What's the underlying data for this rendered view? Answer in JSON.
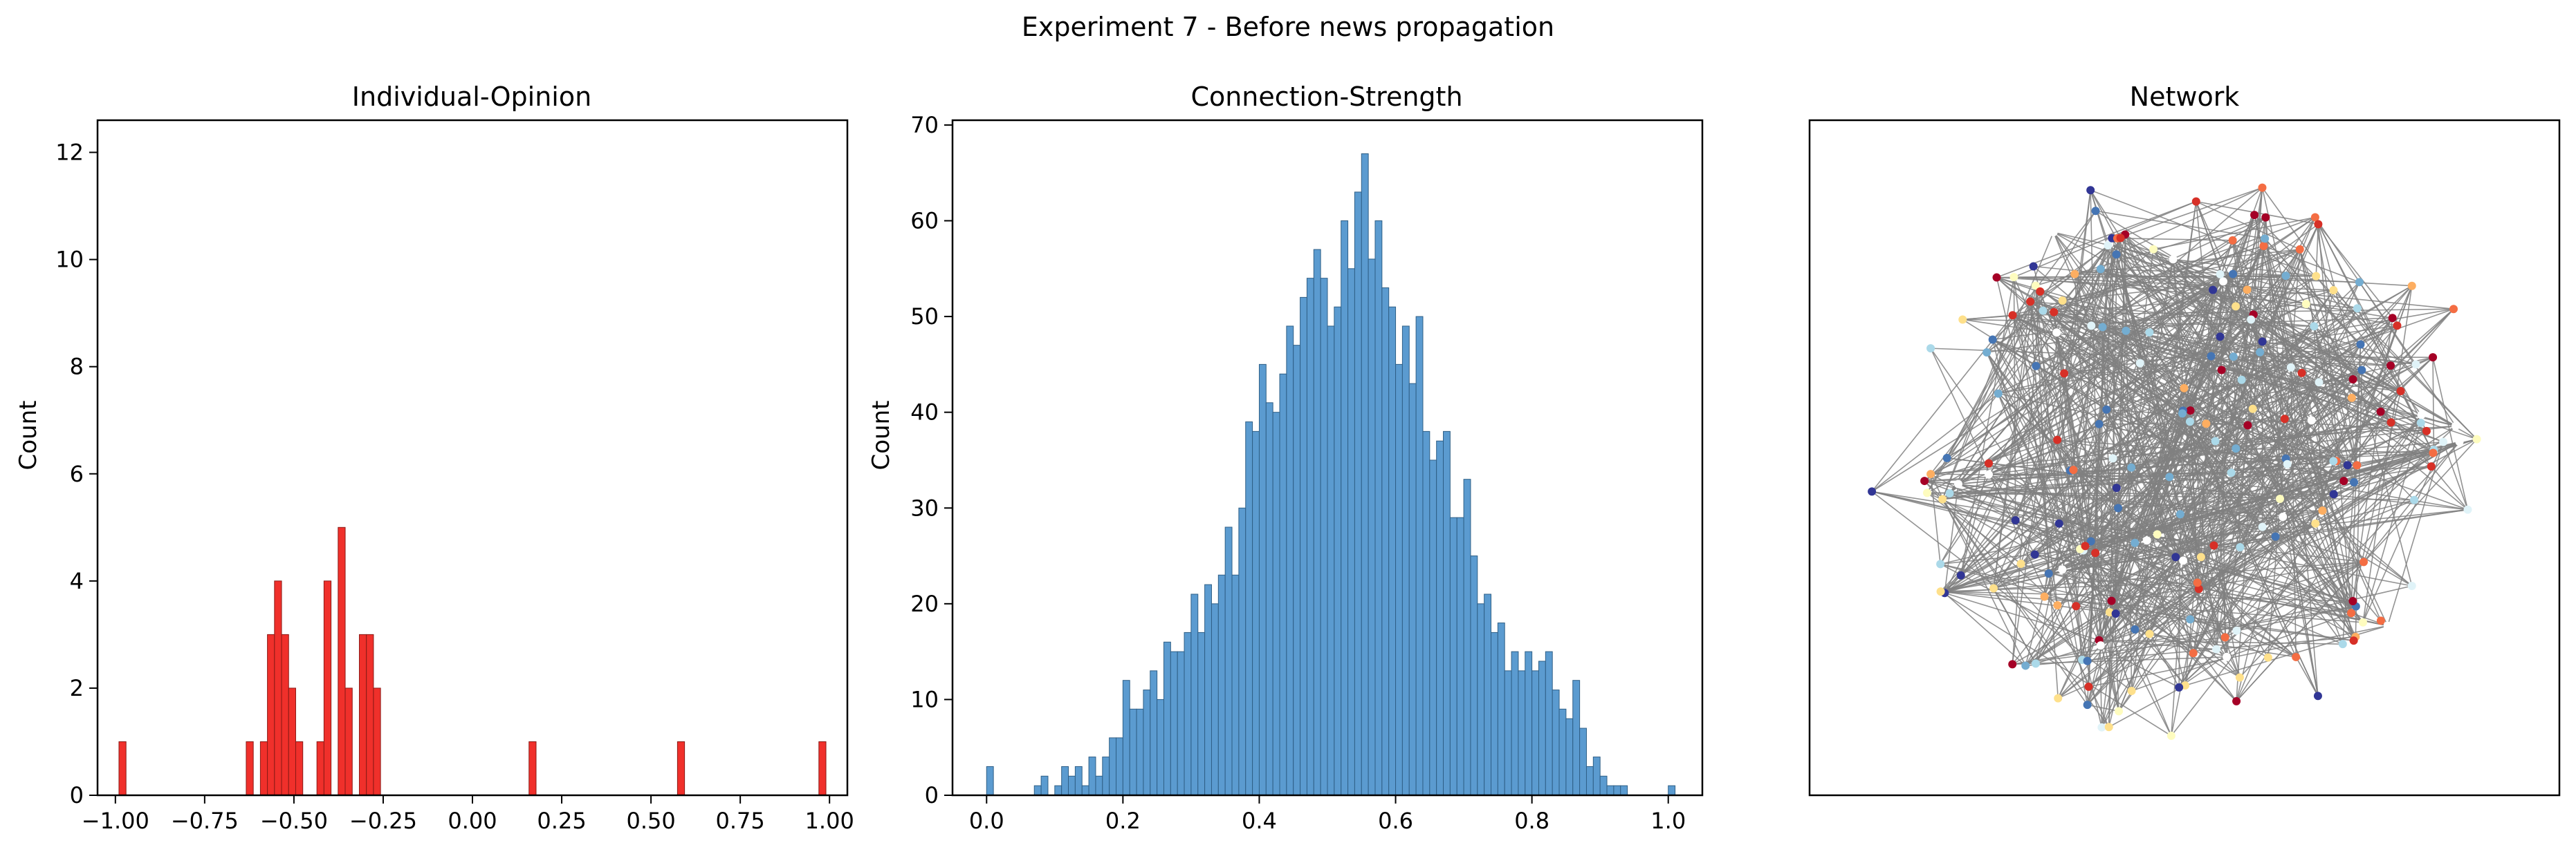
{
  "figure": {
    "suptitle": "Experiment 7 - Before news propagation",
    "edge_color": "#808080"
  },
  "chart_data": [
    {
      "type": "bar",
      "subtype": "histogram",
      "title": "Individual-Opinion",
      "xlabel": "",
      "ylabel": "Count",
      "xlim": [
        -1.05,
        1.05
      ],
      "ylim": [
        0,
        12.6
      ],
      "xticks": [
        -1.0,
        -0.75,
        -0.5,
        -0.25,
        0.0,
        0.25,
        0.5,
        0.75,
        1.0
      ],
      "xtick_labels": [
        "−1.00",
        "−0.75",
        "−0.50",
        "−0.25",
        "0.00",
        "0.25",
        "0.50",
        "0.75",
        "1.00"
      ],
      "yticks": [
        0,
        2,
        4,
        6,
        8,
        10,
        12
      ],
      "ytick_labels": [
        "0",
        "2",
        "4",
        "6",
        "8",
        "10",
        "12"
      ],
      "bar_color": "#f0302b",
      "bar_edge": "#8a1a16",
      "bin_start": -0.99,
      "bin_width": 0.0198,
      "values": [
        1,
        0,
        0,
        0,
        0,
        0,
        0,
        0,
        0,
        0,
        0,
        0,
        0,
        0,
        0,
        0,
        0,
        0,
        1,
        0,
        1,
        3,
        4,
        3,
        2,
        1,
        0,
        0,
        1,
        4,
        0,
        5,
        2,
        0,
        3,
        3,
        2,
        0,
        0,
        0,
        0,
        0,
        0,
        0,
        0,
        0,
        0,
        0,
        0,
        0,
        0,
        0,
        0,
        0,
        0,
        0,
        0,
        0,
        1,
        0,
        0,
        0,
        0,
        0,
        0,
        0,
        0,
        0,
        0,
        0,
        0,
        0,
        0,
        0,
        0,
        0,
        0,
        0,
        0,
        1,
        0,
        0,
        0,
        0,
        0,
        0,
        0,
        0,
        0,
        0,
        0,
        0,
        0,
        0,
        0,
        0,
        0,
        0,
        0,
        1
      ],
      "values_note": ""
    },
    {
      "type": "bar",
      "subtype": "histogram",
      "title": "Connection-Strength",
      "xlabel": "",
      "ylabel": "Count",
      "xlim": [
        -0.05,
        1.05
      ],
      "ylim": [
        0,
        70.5
      ],
      "xticks": [
        0.0,
        0.2,
        0.4,
        0.6,
        0.8,
        1.0
      ],
      "xtick_labels": [
        "0.0",
        "0.2",
        "0.4",
        "0.6",
        "0.8",
        "1.0"
      ],
      "yticks": [
        0,
        10,
        20,
        30,
        40,
        50,
        60,
        70
      ],
      "ytick_labels": [
        "0",
        "10",
        "20",
        "30",
        "40",
        "50",
        "60",
        "70"
      ],
      "bar_color": "#5b9bd0",
      "bar_edge": "#2f5f86",
      "bin_start": 0.0,
      "bin_width": 0.01,
      "values": [
        3,
        0,
        0,
        0,
        0,
        0,
        0,
        1,
        2,
        0,
        1,
        3,
        2,
        3,
        1,
        4,
        2,
        4,
        6,
        6,
        12,
        9,
        9,
        11,
        13,
        10,
        16,
        15,
        15,
        17,
        21,
        17,
        22,
        20,
        23,
        28,
        23,
        30,
        39,
        38,
        45,
        41,
        40,
        44,
        49,
        47,
        52,
        54,
        57,
        54,
        49,
        51,
        60,
        55,
        63,
        67,
        56,
        60,
        53,
        51,
        45,
        49,
        43,
        50,
        38,
        35,
        37,
        38,
        29,
        29,
        33,
        25,
        20,
        21,
        17,
        18,
        13,
        15,
        13,
        15,
        13,
        14,
        15,
        11,
        9,
        8,
        12,
        7,
        3,
        4,
        2,
        1,
        1,
        1,
        0,
        0,
        0,
        0,
        0,
        0,
        1
      ]
    },
    {
      "type": "network",
      "title": "Network",
      "node_palette": [
        "#fefcbf",
        "#fee08b",
        "#fdae61",
        "#f46d43",
        "#d73027",
        "#a50026",
        "#ffffff",
        "#e0f3f8",
        "#abd9e9",
        "#74add1",
        "#4575b4",
        "#313695"
      ],
      "edge_color": "#808080",
      "node_count": 220
    }
  ]
}
